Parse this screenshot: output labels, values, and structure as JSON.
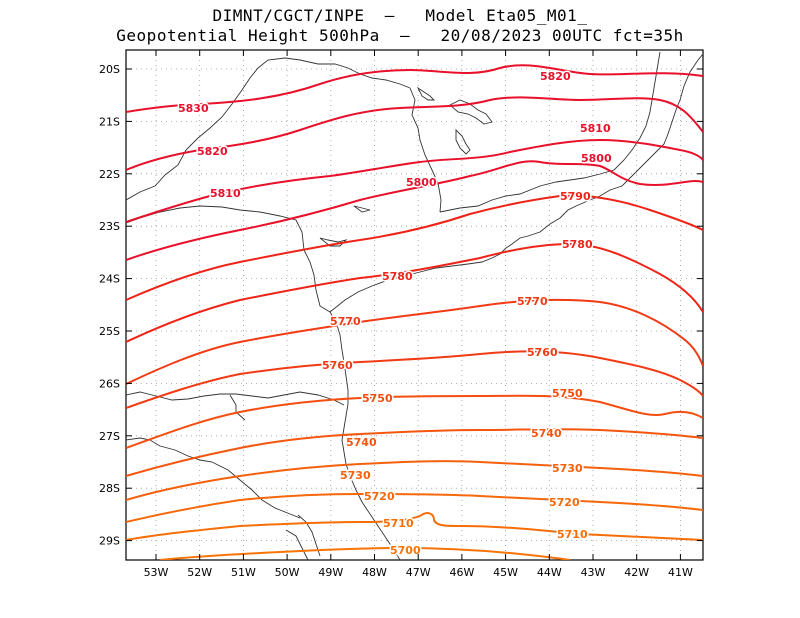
{
  "title": {
    "line1": "DIMNT/CGCT/INPE  –   Model Eta05_M01_",
    "line2": "Geopotential Height 500hPa  –   20/08/2023 00UTC fct=35h"
  },
  "lat_labels": [
    "20S",
    "21S",
    "22S",
    "23S",
    "24S",
    "25S",
    "26S",
    "27S",
    "28S",
    "29S"
  ],
  "lon_labels": [
    "53W",
    "52W",
    "51W",
    "50W",
    "49W",
    "48W",
    "47W",
    "46W",
    "45W",
    "44W",
    "43W",
    "42W",
    "41W"
  ],
  "contour_labels": [
    {
      "text": "5830",
      "color": "#e8102a"
    },
    {
      "text": "5820",
      "color": "#e8102a"
    },
    {
      "text": "5820",
      "color": "#e8102a"
    },
    {
      "text": "5810",
      "color": "#e8102a"
    },
    {
      "text": "5810",
      "color": "#e8102a"
    },
    {
      "text": "5800",
      "color": "#e8102a"
    },
    {
      "text": "5800",
      "color": "#e8102a"
    },
    {
      "text": "5790",
      "color": "#ef2418"
    },
    {
      "text": "5780",
      "color": "#ef2418"
    },
    {
      "text": "5780",
      "color": "#ef2418"
    },
    {
      "text": "5770",
      "color": "#f23a14"
    },
    {
      "text": "5770",
      "color": "#f23a14"
    },
    {
      "text": "5760",
      "color": "#f23a14"
    },
    {
      "text": "5760",
      "color": "#f23a14"
    },
    {
      "text": "5750",
      "color": "#f44e10"
    },
    {
      "text": "5750",
      "color": "#f44e10"
    },
    {
      "text": "5740",
      "color": "#f5560e"
    },
    {
      "text": "5740",
      "color": "#f5560e"
    },
    {
      "text": "5730",
      "color": "#f5600c"
    },
    {
      "text": "5730",
      "color": "#f5600c"
    },
    {
      "text": "5720",
      "color": "#f6680a"
    },
    {
      "text": "5720",
      "color": "#f6680a"
    },
    {
      "text": "5710",
      "color": "#f76e08"
    },
    {
      "text": "5710",
      "color": "#f76e08"
    },
    {
      "text": "5700",
      "color": "#f87406"
    }
  ],
  "colors": {
    "high": "#e8102a",
    "mid": "#f23a14",
    "low": "#f87406",
    "coast": "#333333",
    "grid": "#999999"
  }
}
